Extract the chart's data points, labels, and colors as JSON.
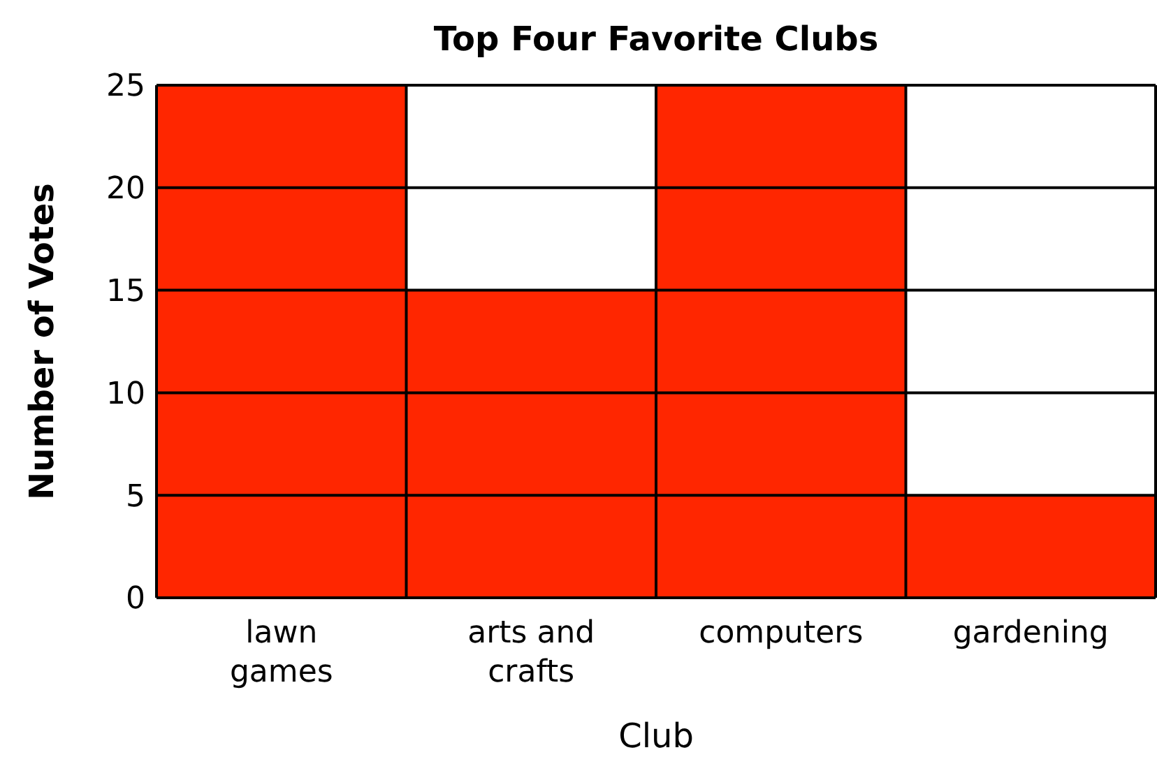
{
  "chart_data": {
    "type": "bar",
    "title": "Top Four Favorite Clubs",
    "xlabel": "Club",
    "ylabel": "Number of Votes",
    "categories": [
      "lawn games",
      "arts and crafts",
      "computers",
      "gardening"
    ],
    "values": [
      25,
      15,
      25,
      5
    ],
    "color": "#ff2600",
    "ylim": [
      0,
      25
    ],
    "yticks": [
      0,
      5,
      10,
      15,
      20,
      25
    ],
    "grid": true
  }
}
